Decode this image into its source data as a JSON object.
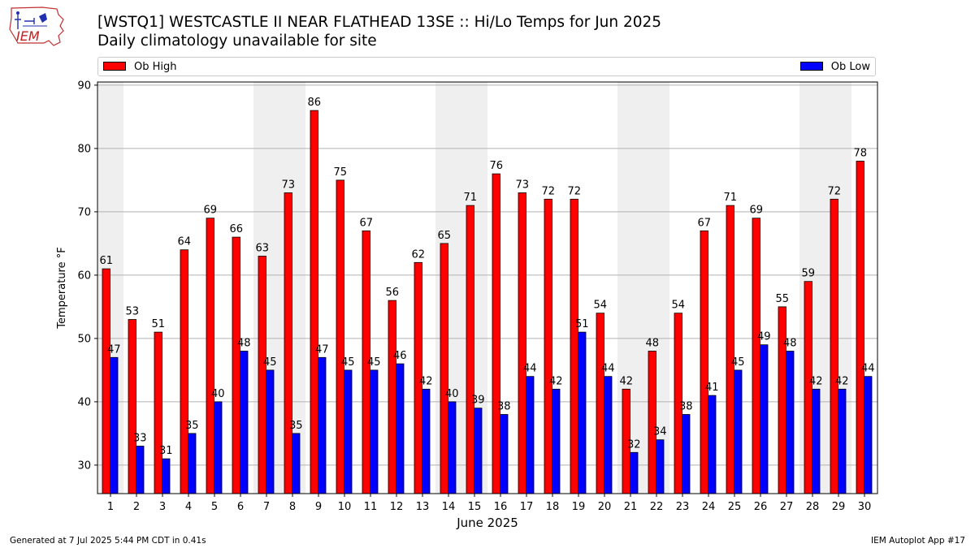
{
  "header": {
    "logo_text": "IEM",
    "title": "[WSTQ1] WESTCASTLE II NEAR FLATHEAD 13SE :: Hi/Lo Temps for Jun 2025",
    "subtitle": "Daily climatology unavailable for site"
  },
  "footer": {
    "generated": "Generated at 7 Jul 2025 5:44 PM CDT in 0.41s",
    "app": "IEM Autoplot App #17"
  },
  "colors": {
    "high": "#ff0000",
    "low": "#0000ff",
    "weekend_band": "#efefef",
    "grid": "#b0b0b0"
  },
  "chart_data": {
    "type": "bar",
    "xlabel": "June 2025",
    "ylabel": "Temperature °F",
    "ylim": [
      25.5,
      90.5
    ],
    "yticks": [
      30,
      40,
      50,
      60,
      70,
      80,
      90
    ],
    "grid": "horizontal",
    "legend_placement": "top",
    "categories": [
      "1",
      "2",
      "3",
      "4",
      "5",
      "6",
      "7",
      "8",
      "9",
      "10",
      "11",
      "12",
      "13",
      "14",
      "15",
      "16",
      "17",
      "18",
      "19",
      "20",
      "21",
      "22",
      "23",
      "24",
      "25",
      "26",
      "27",
      "28",
      "29",
      "30"
    ],
    "weekend_days": [
      1,
      7,
      8,
      14,
      15,
      21,
      22,
      28,
      29
    ],
    "series": [
      {
        "name": "Ob High",
        "values": [
          61,
          53,
          51,
          64,
          69,
          66,
          63,
          73,
          86,
          75,
          67,
          56,
          62,
          65,
          71,
          76,
          73,
          72,
          72,
          54,
          42,
          48,
          54,
          67,
          71,
          69,
          55,
          59,
          72,
          78
        ]
      },
      {
        "name": "Ob Low",
        "values": [
          47,
          33,
          31,
          35,
          40,
          48,
          45,
          35,
          47,
          45,
          45,
          46,
          42,
          40,
          39,
          38,
          44,
          42,
          51,
          44,
          32,
          34,
          38,
          41,
          45,
          49,
          48,
          42,
          42,
          44
        ]
      }
    ]
  }
}
